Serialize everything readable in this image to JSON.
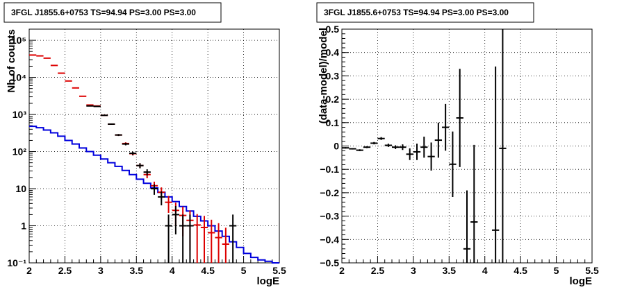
{
  "chart_data": [
    {
      "type": "histogram",
      "title": "3FGL J1855.6+0753 TS=94.94 PS=3.00 PS=3.00",
      "xlabel": "logE",
      "ylabel": "Nb of counts",
      "xlim": [
        2,
        5.5
      ],
      "ylim": [
        0.1,
        200000
      ],
      "yscale": "log",
      "grid": true,
      "x_ticks": [
        "2",
        "2.5",
        "3",
        "3.5",
        "4",
        "4.5",
        "5",
        "5.5"
      ],
      "y_ticks": [
        "10⁻¹",
        "1",
        "10",
        "10²",
        "10³",
        "10⁴",
        "10⁵"
      ],
      "bin_width": 0.1,
      "series": [
        {
          "style": "step",
          "color": "#0000dd",
          "x": [
            2.05,
            2.15,
            2.25,
            2.35,
            2.45,
            2.55,
            2.65,
            2.75,
            2.85,
            2.95,
            3.05,
            3.15,
            3.25,
            3.35,
            3.45,
            3.55,
            3.65,
            3.75,
            3.85,
            3.95,
            4.05,
            4.15,
            4.25,
            4.35,
            4.45,
            4.55,
            4.65,
            4.75,
            4.85,
            4.95,
            5.05,
            5.15,
            5.25,
            5.35,
            5.45
          ],
          "y": [
            480,
            440,
            380,
            320,
            260,
            200,
            160,
            125,
            100,
            80,
            63,
            50,
            40,
            31,
            24,
            18,
            14,
            10.5,
            8,
            6,
            4.5,
            3.3,
            2.5,
            1.8,
            1.35,
            1.0,
            0.72,
            0.52,
            0.37,
            0.26,
            0.18,
            0.14,
            0.12,
            0.11,
            0.1
          ]
        },
        {
          "style": "points",
          "color": "#dd0000",
          "x": [
            2.05,
            2.15,
            2.25,
            2.35,
            2.45,
            2.55,
            2.65,
            2.75,
            2.85,
            2.95,
            3.05,
            3.15,
            3.25,
            3.35,
            3.45,
            3.55,
            3.65,
            3.75,
            3.85,
            3.95,
            4.05,
            4.15,
            4.25,
            4.35,
            4.45,
            4.55,
            4.65,
            4.75
          ],
          "y": [
            40000,
            38000,
            33000,
            21000,
            13000,
            8000,
            5200,
            3100,
            1800,
            1700,
            950,
            550,
            280,
            165,
            88,
            42,
            24,
            12,
            8,
            4.3,
            2.6,
            1.9,
            1.4,
            1.05,
            0.9,
            0.65,
            0.48,
            0.32
          ]
        },
        {
          "style": "points",
          "color": "#000000",
          "x": [
            2.85,
            2.95,
            3.05,
            3.15,
            3.25,
            3.35,
            3.45,
            3.55,
            3.65,
            3.75,
            3.85,
            3.95,
            4.05,
            4.15,
            4.25,
            4.85
          ],
          "y": [
            1700,
            1650,
            950,
            550,
            280,
            160,
            90,
            42,
            28,
            10,
            6,
            1,
            2,
            1,
            1,
            1
          ]
        }
      ]
    },
    {
      "type": "scatter",
      "title": "3FGL J1855.6+0753 TS=94.94 PS=3.00 PS=3.00",
      "xlabel": "logE",
      "ylabel": "(data-model)/model",
      "xlim": [
        2,
        5.5
      ],
      "ylim": [
        -0.5,
        0.5
      ],
      "grid": true,
      "x_ticks": [
        "2",
        "2.5",
        "3",
        "3.5",
        "4",
        "4.5",
        "5",
        "5.5"
      ],
      "y_ticks": [
        "−0.5",
        "−0.4",
        "−0.3",
        "−0.2",
        "−0.1",
        "0",
        "0.1",
        "0.2",
        "0.3",
        "0.4",
        "0.5"
      ],
      "series": [
        {
          "color": "#000000",
          "x": [
            2.05,
            2.15,
            2.25,
            2.35,
            2.45,
            2.55,
            2.65,
            2.75,
            2.85,
            2.95,
            3.05,
            3.15,
            3.25,
            3.35,
            3.45,
            3.55,
            3.65,
            3.75,
            3.85,
            4.15,
            4.25
          ],
          "y": [
            -0.008,
            -0.012,
            -0.018,
            -0.005,
            0.012,
            0.032,
            0.003,
            -0.005,
            -0.005,
            -0.035,
            -0.025,
            -0.005,
            -0.045,
            0.025,
            0.08,
            -0.078,
            0.12,
            -0.44,
            -0.325,
            -0.36,
            -0.01
          ],
          "yerr": [
            0.003,
            0.003,
            0.004,
            0.004,
            0.005,
            0.006,
            0.007,
            0.008,
            0.012,
            0.025,
            0.035,
            0.045,
            0.06,
            0.075,
            0.1,
            0.14,
            0.21,
            0.25,
            0.33,
            0.7,
            0.52
          ]
        }
      ]
    }
  ]
}
